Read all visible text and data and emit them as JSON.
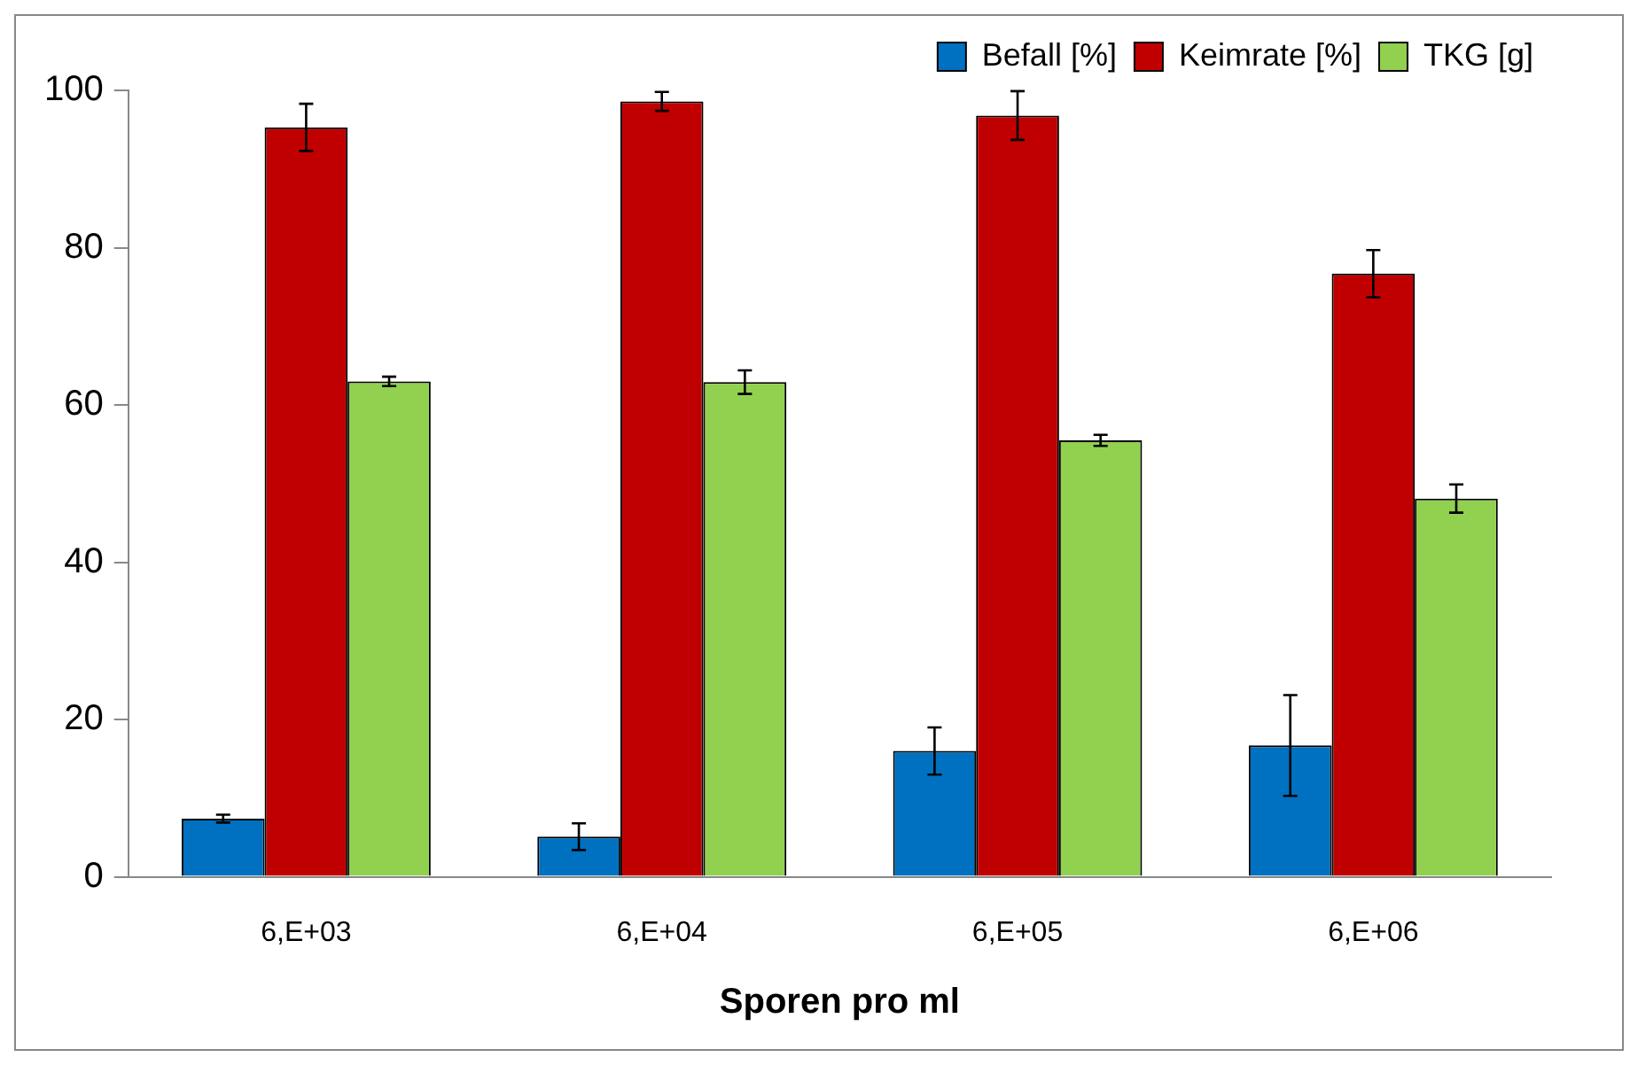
{
  "chart_data": {
    "type": "bar",
    "xlabel": "Sporen pro ml",
    "categories": [
      "6,E+03",
      "6,E+04",
      "6,E+05",
      "6,E+06"
    ],
    "series": [
      {
        "name": "Befall [%]",
        "color": "#0070c0",
        "values": [
          7.4,
          5.1,
          16.0,
          16.7
        ],
        "errors": [
          0.5,
          1.7,
          3.0,
          6.4
        ]
      },
      {
        "name": "Keimrate [%]",
        "color": "#c00000",
        "values": [
          95.3,
          98.6,
          96.8,
          76.7
        ],
        "errors": [
          3.0,
          1.2,
          3.1,
          3.0
        ]
      },
      {
        "name": "TKG [g]",
        "color": "#92d050",
        "values": [
          63.0,
          62.9,
          55.5,
          48.1
        ],
        "errors": [
          0.6,
          1.5,
          0.7,
          1.8
        ]
      }
    ],
    "ylim": [
      0,
      100
    ],
    "yticks": [
      0,
      20,
      40,
      60,
      80,
      100
    ],
    "grid": false,
    "legend": "top right"
  }
}
